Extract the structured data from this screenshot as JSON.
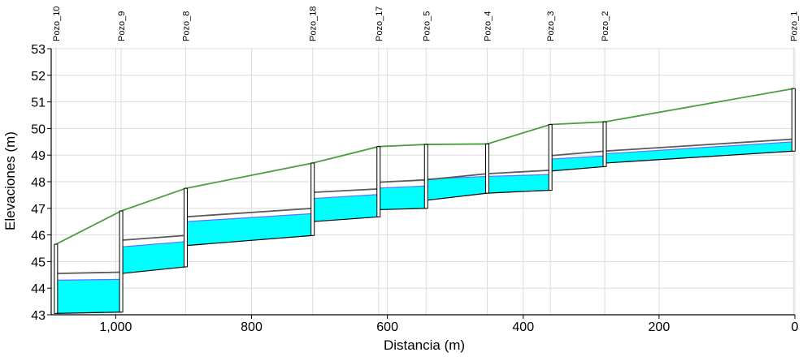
{
  "chart_data": {
    "type": "profile",
    "xlabel": "Distancia (m)",
    "ylabel": "Elevaciones (m)",
    "xlim": [
      1095,
      0
    ],
    "ylim": [
      43,
      53
    ],
    "x_ticks": [
      1000,
      800,
      600,
      400,
      200,
      0
    ],
    "x_tick_labels": [
      "1,000",
      "800",
      "600",
      "400",
      "200",
      "0"
    ],
    "y_ticks": [
      43,
      44,
      45,
      46,
      47,
      48,
      49,
      50,
      51,
      52,
      53
    ],
    "y_tick_labels": [
      "43",
      "44",
      "45",
      "46",
      "47",
      "48",
      "49",
      "50",
      "51",
      "52",
      "53"
    ],
    "grid": true,
    "colors": {
      "ground": "#4a9e3f",
      "pipe": "#00ffff",
      "hgl": "#5a5a5a",
      "water_top": "#6a6aff",
      "invert": "#000000",
      "grid": "#dcdcdc",
      "axis": "#000000"
    },
    "wells": [
      {
        "name": "Pozo_10",
        "x": 1088,
        "ground": 45.65
      },
      {
        "name": "Pozo_9",
        "x": 992,
        "ground": 46.9
      },
      {
        "name": "Pozo_8",
        "x": 897,
        "ground": 47.75
      },
      {
        "name": "Pozo_18",
        "x": 710,
        "ground": 48.7
      },
      {
        "name": "Pozo_17",
        "x": 613,
        "ground": 49.32
      },
      {
        "name": "Pozo_5",
        "x": 543,
        "ground": 49.4
      },
      {
        "name": "Pozo_4",
        "x": 453,
        "ground": 49.42
      },
      {
        "name": "Pozo_3",
        "x": 360,
        "ground": 50.15
      },
      {
        "name": "Pozo_2",
        "x": 280,
        "ground": 50.25
      },
      {
        "name": "Pozo_1",
        "x": 2,
        "ground": 51.5
      }
    ],
    "pipes": [
      {
        "from": 1088,
        "to": 992,
        "inv_start": 43.05,
        "inv_end": 43.1,
        "crown_start": 44.3,
        "crown_end": 44.33,
        "hgl_start": 44.55,
        "hgl_end": 44.6
      },
      {
        "from": 992,
        "to": 897,
        "inv_start": 44.55,
        "inv_end": 44.8,
        "crown_start": 45.55,
        "crown_end": 45.75,
        "hgl_start": 45.8,
        "hgl_end": 45.98
      },
      {
        "from": 897,
        "to": 710,
        "inv_start": 45.6,
        "inv_end": 45.98,
        "crown_start": 46.5,
        "crown_end": 46.8,
        "hgl_start": 46.68,
        "hgl_end": 47.0
      },
      {
        "from": 710,
        "to": 613,
        "inv_start": 46.5,
        "inv_end": 46.68,
        "crown_start": 47.37,
        "crown_end": 47.52,
        "hgl_start": 47.6,
        "hgl_end": 47.73
      },
      {
        "from": 613,
        "to": 543,
        "inv_start": 46.95,
        "inv_end": 47.0,
        "crown_start": 47.76,
        "crown_end": 47.84,
        "hgl_start": 47.98,
        "hgl_end": 48.07
      },
      {
        "from": 543,
        "to": 453,
        "inv_start": 47.3,
        "inv_end": 47.57,
        "crown_start": 48.1,
        "crown_end": 48.2,
        "hgl_start": 48.07,
        "hgl_end": 48.3
      },
      {
        "from": 453,
        "to": 360,
        "inv_start": 47.57,
        "inv_end": 47.68,
        "crown_start": 48.2,
        "crown_end": 48.27,
        "hgl_start": 48.3,
        "hgl_end": 48.43
      },
      {
        "from": 360,
        "to": 280,
        "inv_start": 48.4,
        "inv_end": 48.57,
        "crown_start": 48.85,
        "crown_end": 48.97,
        "hgl_start": 48.98,
        "hgl_end": 49.15
      },
      {
        "from": 280,
        "to": 2,
        "inv_start": 48.7,
        "inv_end": 49.15,
        "crown_start": 49.05,
        "crown_end": 49.5,
        "hgl_start": 49.15,
        "hgl_end": 49.6
      }
    ]
  }
}
